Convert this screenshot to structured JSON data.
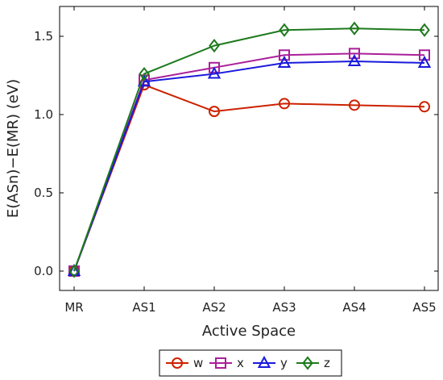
{
  "chart_data": {
    "type": "line",
    "title": "",
    "xlabel": "Active Space",
    "ylabel": "E(ASn)−E(MR) (eV)",
    "categories": [
      "MR",
      "AS1",
      "AS2",
      "AS3",
      "AS4",
      "AS5"
    ],
    "ylim": [
      -0.15,
      1.7
    ],
    "yticks": [
      0.0,
      0.5,
      1.0,
      1.5
    ],
    "ytick_labels": [
      "0.0",
      "0.5",
      "1.0",
      "1.5"
    ],
    "grid": false,
    "legend": "bottom-center",
    "series": [
      {
        "name": "w",
        "color": "#cc2200",
        "marker": "circle",
        "values": [
          0.0,
          1.19,
          1.02,
          1.07,
          1.06,
          1.05
        ]
      },
      {
        "name": "x",
        "color": "#aa1f99",
        "marker": "square",
        "values": [
          0.0,
          1.22,
          1.3,
          1.38,
          1.39,
          1.38
        ]
      },
      {
        "name": "y",
        "color": "#1a1adc",
        "marker": "triangle",
        "values": [
          0.0,
          1.21,
          1.26,
          1.33,
          1.34,
          1.33
        ]
      },
      {
        "name": "z",
        "color": "#1e7a1e",
        "marker": "diamond",
        "values": [
          0.0,
          1.26,
          1.44,
          1.54,
          1.55,
          1.54
        ]
      }
    ]
  }
}
